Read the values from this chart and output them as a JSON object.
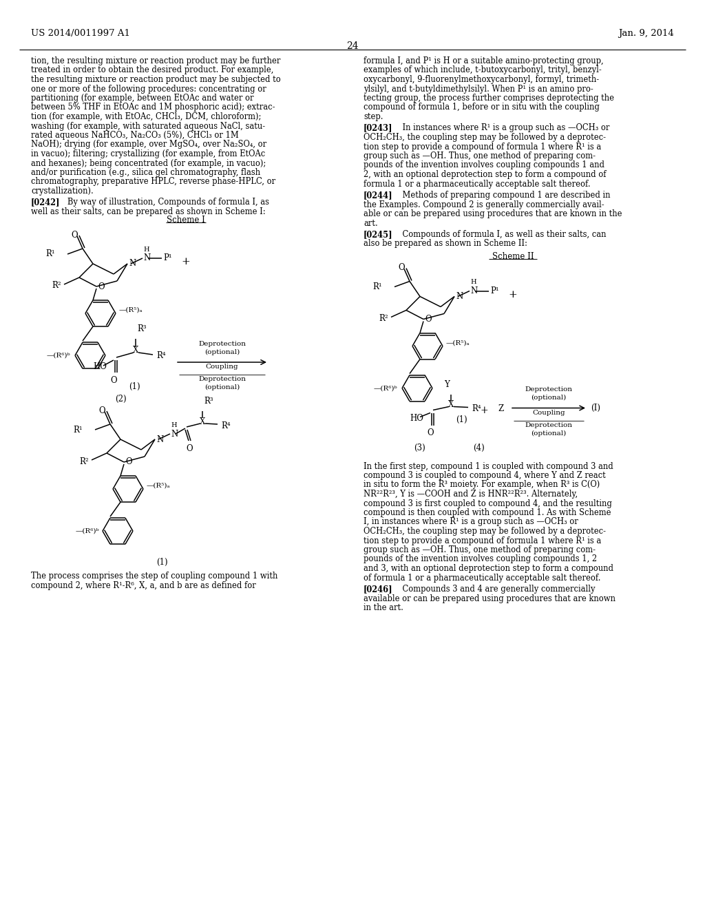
{
  "page_header_left": "US 2014/0011997 A1",
  "page_header_right": "Jan. 9, 2014",
  "page_number": "24",
  "background_color": "#ffffff",
  "left_col_lines": [
    "tion, the resulting mixture or reaction product may be further",
    "treated in order to obtain the desired product. For example,",
    "the resulting mixture or reaction product may be subjected to",
    "one or more of the following procedures: concentrating or",
    "partitioning (for example, between EtOAc and water or",
    "between 5% THF in EtOAc and 1M phosphoric acid); extrac-",
    "tion (for example, with EtOAc, CHCl₃, DCM, chloroform);",
    "washing (for example, with saturated aqueous NaCl, satu-",
    "rated aqueous NaHCO₃, Na₂CO₃ (5%), CHCl₃ or 1M",
    "NaOH); drying (for example, over MgSO₄, over Na₂SO₄, or",
    "in vacuo); filtering; crystallizing (for example, from EtOAc",
    "and hexanes); being concentrated (for example, in vacuo);",
    "and/or purification (e.g., silica gel chromatography, flash",
    "chromatography, preparative HPLC, reverse phase-HPLC, or",
    "crystallization)."
  ],
  "right_col_lines_1": [
    "formula I, and P¹ is H or a suitable amino-protecting group,",
    "examples of which include, t-butoxycarbonyl, trityl, benzyl-",
    "oxycarbonyl, 9-fluorenylmethoxycarbonyl, formyl, trimeth-",
    "ylsilyl, and t-butyldimethylsilyl. When P¹ is an amino pro-",
    "tecting group, the process further comprises deprotecting the",
    "compound of formula 1, before or in situ with the coupling",
    "step."
  ],
  "para_0242_lines": [
    "[0242]    By way of illustration, Compounds of formula I, as",
    "well as their salts, can be prepared as shown in Scheme I:"
  ],
  "para_0243_lines": [
    "[0243]    In instances where R¹ is a group such as —OCH₃ or",
    "OCH₂CH₃, the coupling step may be followed by a deprotec-",
    "tion step to provide a compound of formula 1 where R¹ is a",
    "group such as —OH. Thus, one method of preparing com-",
    "pounds of the invention involves coupling compounds 1 and",
    "2, with an optional deprotection step to form a compound of",
    "formula 1 or a pharmaceutically acceptable salt thereof."
  ],
  "para_0244_lines": [
    "[0244]    Methods of preparing compound 1 are described in",
    "the Examples. Compound 2 is generally commercially avail-",
    "able or can be prepared using procedures that are known in the",
    "art."
  ],
  "para_0245_lines": [
    "[0245]    Compounds of formula I, as well as their salts, can",
    "also be prepared as shown in Scheme II:"
  ],
  "right_bottom_para_lines": [
    "In the first step, compound 1 is coupled with compound 3 and",
    "compound 3 is coupled to compound 4, where Y and Z react",
    "in situ to form the R³ moiety. For example, when R³ is C(O)",
    "NR²²R²³, Y is —COOH and Z is HNR²²R²³. Alternately,",
    "compound 3 is first coupled to compound 4, and the resulting",
    "compound is then coupled with compound 1. As with Scheme",
    "I, in instances where R¹ is a group such as —OCH₃ or",
    "OCH₂CH₃, the coupling step may be followed by a deprotec-",
    "tion step to provide a compound of formula 1 where R¹ is a",
    "group such as —OH. Thus, one method of preparing com-",
    "pounds of the invention involves coupling compounds 1, 2",
    "and 3, with an optional deprotection step to form a compound",
    "of formula 1 or a pharmaceutically acceptable salt thereof."
  ],
  "para_0246_lines": [
    "[0246]    Compounds 3 and 4 are generally commercially",
    "available or can be prepared using procedures that are known",
    "in the art."
  ],
  "bottom_left_lines": [
    "The process comprises the step of coupling compound 1 with",
    "compound 2, where R¹-R⁶, X, a, and b are as defined for"
  ]
}
